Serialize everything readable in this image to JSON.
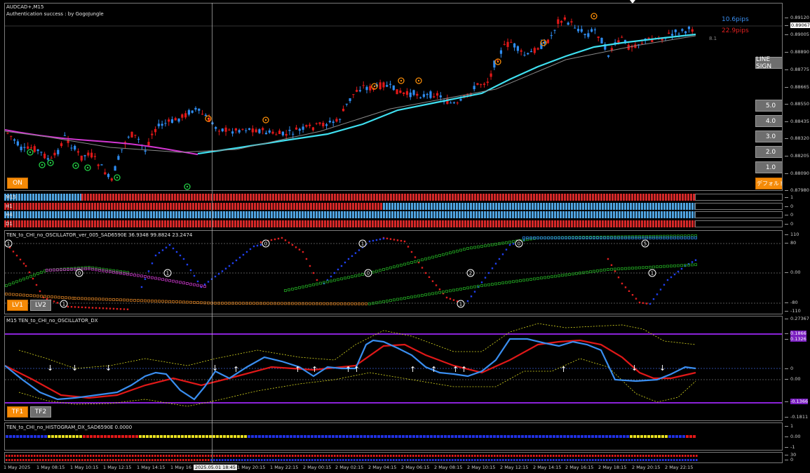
{
  "main": {
    "symbol": "AUDCAD+,M15",
    "auth": "Authentication success : by GogoJungle",
    "pips_blue": "10.6pips",
    "pips_red": "22.9pips",
    "spread": "8.1",
    "price_axis": [
      "0.89120",
      "0.89067",
      "0.89005",
      "0.88890",
      "0.88775",
      "0.88665",
      "0.88550",
      "0.88435",
      "0.88320",
      "0.88205",
      "0.88090",
      "0.87980"
    ],
    "on_label": "ON",
    "line_sign": "LINE SIGN",
    "levels": [
      "5.0",
      "4.0",
      "3.0",
      "2.0",
      "1.0"
    ],
    "default_label": "デフォルト"
  },
  "timeframes": {
    "labels": [
      "M15",
      "H1",
      "H4",
      "D1"
    ],
    "axis": [
      "1",
      "0",
      "0",
      "0"
    ],
    "colors": {
      "up": "#4fa3e0",
      "down": "#d62828"
    }
  },
  "oscillator": {
    "title": "TEN_to_CHI_no_OSCILLATOR_ver_005_SAD6590E 36.9348 99.8824 23.2474",
    "axis": [
      "110",
      "80",
      "0.00",
      "-80",
      "-110"
    ],
    "lv1": "LV1",
    "lv2": "LV2",
    "markers": [
      "1",
      "0",
      "1",
      "1",
      "0",
      "1",
      "0",
      "1",
      "2",
      "0",
      "5",
      "1"
    ]
  },
  "dx": {
    "title": "M15 TEN_to_CHI_no_OSCILLATOR_DX",
    "axis": [
      "0.27367",
      "0.1866",
      "0.1326",
      "0",
      "0.00",
      "-0.1366",
      "-0.1811"
    ],
    "tf1": "TF1",
    "tf2": "TF2"
  },
  "histogram": {
    "title": "TEN_to_CHI_no_HISTOGRAM_DX_SAD6590E 0.0000",
    "axis": [
      "1",
      "0.00",
      "-1"
    ]
  },
  "bottom": {
    "axis": [
      "30",
      "0"
    ]
  },
  "xaxis": [
    "1 May 2025",
    "1 May 08:15",
    "1 May 10:15",
    "1 May 12:15",
    "1 May 14:15",
    "1 May 16",
    "2025.05.01 18:45",
    "1 May 20:15",
    "1 May 22:15",
    "2 May 00:15",
    "2 May 02:15",
    "2 May 04:15",
    "2 May 06:15",
    "2 May 08:15",
    "2 May 10:15",
    "2 May 12:15",
    "2 May 14:15",
    "2 May 16:15",
    "2 May 18:15",
    "2 May 20:15",
    "2 May 22:15"
  ],
  "colors": {
    "bull": "#2e8cf0",
    "bear": "#e01818",
    "ma_magenta": "#d236d2",
    "ma_cyan": "#3fe0f0",
    "signal_orange": "#f58a07",
    "signal_green": "#22cc44"
  }
}
